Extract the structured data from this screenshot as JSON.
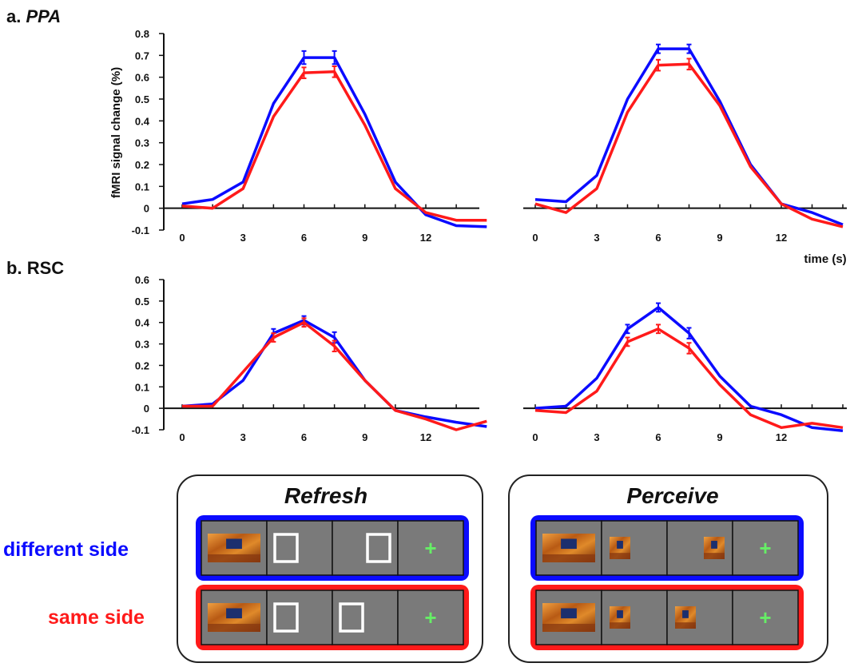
{
  "panels": {
    "a": {
      "letter": "a.",
      "region": "PPA"
    },
    "b": {
      "letter": "b.",
      "region": "RSC"
    }
  },
  "ylabel": "fMRI signal change (%)",
  "xlabel": "time (s)",
  "colors": {
    "different_side": "#0b0bff",
    "same_side": "#ff1a1a",
    "frame_gray": "#7a7a7a",
    "fixation": "#66ee66"
  },
  "legend": {
    "different_side": "different side",
    "same_side": "same side"
  },
  "conditions": {
    "refresh": "Refresh",
    "perceive": "Perceive"
  },
  "schematic": {
    "refresh": {
      "different_side": [
        "scene",
        "box-left",
        "box-right",
        "fixation"
      ],
      "same_side": [
        "scene",
        "box-left",
        "box-left",
        "fixation"
      ]
    },
    "perceive": {
      "different_side": [
        "scene",
        "scene-small-left",
        "scene-small-right",
        "fixation"
      ],
      "same_side": [
        "scene",
        "scene-small-left",
        "scene-small-left",
        "fixation"
      ]
    },
    "fixation_symbol": "+"
  },
  "chart_data": [
    {
      "panel": "a",
      "region": "PPA",
      "condition": "Refresh",
      "type": "line",
      "x": [
        0,
        1.5,
        3,
        4.5,
        6,
        7.5,
        9,
        10.5,
        12,
        13.5,
        15
      ],
      "xticks": [
        0,
        3,
        6,
        9,
        12
      ],
      "ylim": [
        -0.1,
        0.8
      ],
      "yticks": [
        -0.1,
        0,
        0.1,
        0.2,
        0.3,
        0.4,
        0.5,
        0.6,
        0.7,
        0.8
      ],
      "ytick_labels": [
        "-0.1",
        "0",
        "0.1",
        "0.2",
        "0.3",
        "0.4",
        "0.5",
        "0.6",
        "0.7",
        "0.8"
      ],
      "series": [
        {
          "key": "different_side",
          "values": [
            0.02,
            0.04,
            0.12,
            0.48,
            0.69,
            0.69,
            0.43,
            0.12,
            -0.03,
            -0.08,
            -0.085
          ],
          "errors": [
            0,
            0,
            0,
            0,
            0.03,
            0.03,
            0,
            0,
            0,
            0,
            0
          ]
        },
        {
          "key": "same_side",
          "values": [
            0.01,
            0.0,
            0.09,
            0.42,
            0.62,
            0.625,
            0.38,
            0.09,
            -0.02,
            -0.055,
            -0.055
          ],
          "errors": [
            0,
            0,
            0,
            0,
            0.025,
            0.025,
            0,
            0,
            0,
            0,
            0
          ]
        }
      ]
    },
    {
      "panel": "a",
      "region": "PPA",
      "condition": "Perceive",
      "type": "line",
      "x": [
        0,
        1.5,
        3,
        4.5,
        6,
        7.5,
        9,
        10.5,
        12,
        13.5,
        15
      ],
      "xticks": [
        0,
        3,
        6,
        9,
        12
      ],
      "ylim": [
        -0.1,
        0.8
      ],
      "series": [
        {
          "key": "different_side",
          "values": [
            0.04,
            0.03,
            0.15,
            0.5,
            0.73,
            0.73,
            0.49,
            0.2,
            0.02,
            -0.02,
            -0.075
          ],
          "errors": [
            0,
            0,
            0,
            0,
            0.02,
            0.02,
            0,
            0,
            0,
            0,
            0
          ]
        },
        {
          "key": "same_side",
          "values": [
            0.02,
            -0.02,
            0.09,
            0.44,
            0.655,
            0.66,
            0.47,
            0.19,
            0.02,
            -0.05,
            -0.085
          ],
          "errors": [
            0,
            0,
            0,
            0,
            0.025,
            0.025,
            0,
            0,
            0,
            0,
            0
          ]
        }
      ]
    },
    {
      "panel": "b",
      "region": "RSC",
      "condition": "Refresh",
      "type": "line",
      "x": [
        0,
        1.5,
        3,
        4.5,
        6,
        7.5,
        9,
        10.5,
        12,
        13.5,
        15
      ],
      "xticks": [
        0,
        3,
        6,
        9,
        12
      ],
      "ylim": [
        -0.1,
        0.6
      ],
      "yticks": [
        -0.1,
        0,
        0.1,
        0.2,
        0.3,
        0.4,
        0.5,
        0.6
      ],
      "ytick_labels": [
        "-0.1",
        "0",
        "0.1",
        "0.2",
        "0.3",
        "0.4",
        "0.5",
        "0.6"
      ],
      "series": [
        {
          "key": "different_side",
          "values": [
            0.01,
            0.02,
            0.13,
            0.35,
            0.41,
            0.33,
            0.13,
            -0.01,
            -0.04,
            -0.065,
            -0.085
          ],
          "errors": [
            0,
            0,
            0,
            0.02,
            0.02,
            0.025,
            0,
            0,
            0,
            0,
            0
          ]
        },
        {
          "key": "same_side",
          "values": [
            0.01,
            0.01,
            0.17,
            0.33,
            0.4,
            0.29,
            0.13,
            -0.01,
            -0.05,
            -0.1,
            -0.06
          ],
          "errors": [
            0,
            0,
            0,
            0.02,
            0.02,
            0.025,
            0,
            0,
            0,
            0,
            0
          ]
        }
      ]
    },
    {
      "panel": "b",
      "region": "RSC",
      "condition": "Perceive",
      "type": "line",
      "x": [
        0,
        1.5,
        3,
        4.5,
        6,
        7.5,
        9,
        10.5,
        12,
        13.5,
        15
      ],
      "xticks": [
        0,
        3,
        6,
        9,
        12
      ],
      "ylim": [
        -0.1,
        0.6
      ],
      "series": [
        {
          "key": "different_side",
          "values": [
            0.0,
            0.01,
            0.14,
            0.37,
            0.47,
            0.35,
            0.15,
            0.01,
            -0.03,
            -0.09,
            -0.105
          ],
          "errors": [
            0,
            0,
            0,
            0.02,
            0.02,
            0.025,
            0,
            0,
            0,
            0,
            0
          ]
        },
        {
          "key": "same_side",
          "values": [
            -0.01,
            -0.02,
            0.08,
            0.31,
            0.37,
            0.28,
            0.11,
            -0.03,
            -0.09,
            -0.07,
            -0.09
          ],
          "errors": [
            0,
            0,
            0,
            0.02,
            0.02,
            0.025,
            0,
            0,
            0,
            0,
            0
          ]
        }
      ]
    }
  ]
}
